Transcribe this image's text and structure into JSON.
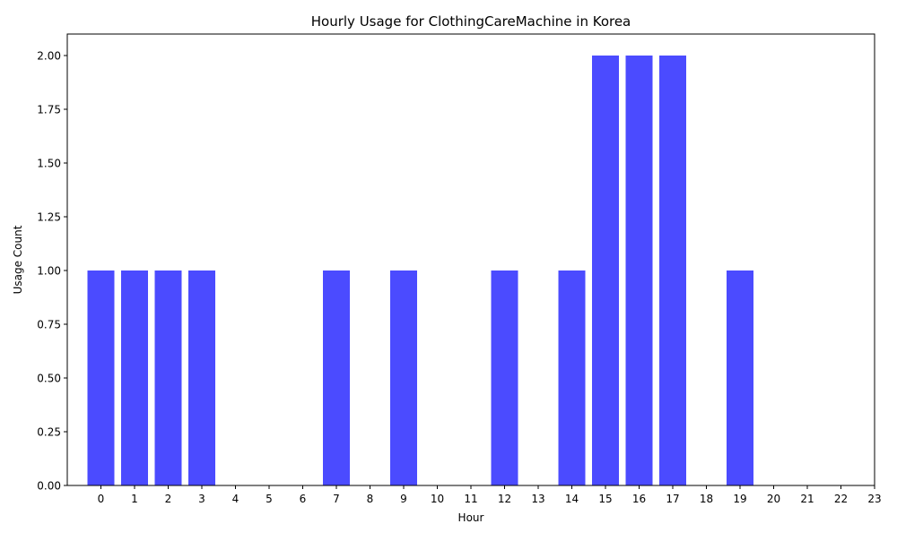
{
  "chart_data": {
    "type": "bar",
    "title": "Hourly Usage for ClothingCareMachine in Korea",
    "xlabel": "Hour",
    "ylabel": "Usage Count",
    "categories": [
      0,
      1,
      2,
      3,
      4,
      5,
      6,
      7,
      8,
      9,
      10,
      11,
      12,
      13,
      14,
      15,
      16,
      17,
      18,
      19,
      20,
      21,
      22,
      23
    ],
    "x_tick_labels": [
      "0",
      "1",
      "2",
      "3",
      "4",
      "5",
      "6",
      "7",
      "8",
      "9",
      "10",
      "11",
      "12",
      "13",
      "14",
      "15",
      "16",
      "17",
      "18",
      "19",
      "20",
      "21",
      "22",
      "23"
    ],
    "values": [
      1,
      1,
      1,
      1,
      0,
      0,
      0,
      1,
      0,
      1,
      0,
      0,
      1,
      0,
      1,
      2,
      2,
      2,
      0,
      1,
      0,
      0,
      0,
      0
    ],
    "bar_categories": [
      0,
      1,
      2,
      3,
      7,
      9,
      12,
      14,
      15,
      16,
      17,
      19
    ],
    "y_ticks": [
      0,
      0.25,
      0.5,
      0.75,
      1.0,
      1.25,
      1.5,
      1.75,
      2.0
    ],
    "y_tick_labels": [
      "0.00",
      "0.25",
      "0.50",
      "0.75",
      "1.00",
      "1.25",
      "1.50",
      "1.75",
      "2.00"
    ],
    "ylim": [
      0,
      2.1
    ],
    "xlim": [
      -1,
      23
    ],
    "bar_color": "#4b4bff",
    "grid": false,
    "legend": "none"
  }
}
